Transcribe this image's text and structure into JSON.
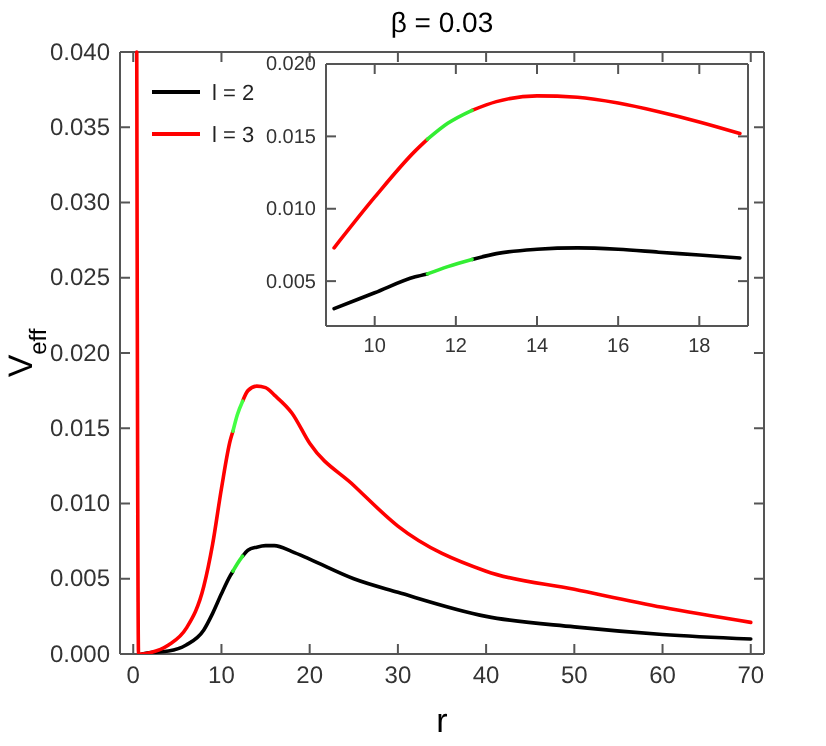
{
  "chart_data": [
    {
      "type": "line",
      "title": "β = 0.03",
      "xlabel": "r",
      "ylabel": "V$_{eff}$",
      "xlim": [
        -1.5,
        71.5
      ],
      "ylim": [
        0,
        0.04
      ],
      "xticks": [
        0,
        10,
        20,
        30,
        40,
        50,
        60,
        70
      ],
      "yticks": [
        {
          "value": 0,
          "label": "0.000"
        },
        {
          "value": 0.005,
          "label": "0.005"
        },
        {
          "value": 0.01,
          "label": "0.010"
        },
        {
          "value": 0.015,
          "label": "0.015"
        },
        {
          "value": 0.02,
          "label": "0.020"
        },
        {
          "value": 0.025,
          "label": "0.025"
        },
        {
          "value": 0.03,
          "label": "0.030"
        },
        {
          "value": 0.035,
          "label": "0.035"
        },
        {
          "value": 0.04,
          "label": "0.040"
        }
      ],
      "legend": "top left",
      "grid": false,
      "line_style": "solid",
      "marker": "none",
      "series": [
        {
          "name": "l = 2",
          "color": "#000000",
          "x": [
            1,
            2,
            4,
            6,
            8,
            9,
            10,
            11,
            11.3,
            11.8,
            12.4,
            13,
            14,
            15,
            16,
            18,
            20,
            25,
            30,
            40,
            50,
            60,
            70
          ],
          "values": [
            0,
            0.0001,
            0.0002,
            0.0006,
            0.0016,
            0.0027,
            0.004,
            0.0052,
            0.0055,
            null,
            0.0065,
            0.0069,
            0.0071,
            0.0072,
            0.0072,
            0.0068,
            0.0063,
            0.005,
            0.0041,
            0.0025,
            0.0018,
            0.0013,
            0.001
          ]
        },
        {
          "name": "l = 3",
          "color": "#ff0000",
          "x": [
            0.4,
            0.6,
            1,
            2,
            4,
            6,
            8,
            9,
            10,
            11,
            11.3,
            11.8,
            12.4,
            13,
            14,
            15,
            16,
            18,
            20,
            25,
            30,
            40,
            50,
            60,
            70
          ],
          "values": [
            0.04,
            0,
            0,
            0.0001,
            0.0006,
            0.0017,
            0.0045,
            0.0073,
            0.011,
            0.0142,
            0.0148,
            null,
            0.0168,
            0.0175,
            0.0178,
            0.0177,
            0.0172,
            0.016,
            0.014,
            0.0112,
            0.0085,
            0.0055,
            0.0043,
            0.0031,
            0.0021
          ]
        },
        {
          "color": "#33ee33",
          "x": [
            11.3,
            11.8,
            12.4
          ],
          "values": [
            0.0055,
            0.006,
            0.0065
          ]
        },
        {
          "color": "#44ff44",
          "x": [
            11.3,
            11.8,
            12.4
          ],
          "values": [
            0.0148,
            0.0159,
            0.0168
          ]
        }
      ]
    },
    {
      "type": "line",
      "xlim": [
        8.8,
        19.2
      ],
      "ylim": [
        0.0019,
        0.02
      ],
      "xticks": [
        10,
        12,
        14,
        16,
        18
      ],
      "yticks": [
        {
          "value": 0.005,
          "label": "0.005"
        },
        {
          "value": 0.01,
          "label": "0.010"
        },
        {
          "value": 0.015,
          "label": "0.015"
        },
        {
          "value": 0.02,
          "label": "0.020"
        }
      ],
      "grid": false,
      "line_style": "solid",
      "marker": "none",
      "series": [
        {
          "color": "#000000",
          "x": [
            9,
            10,
            11,
            11.3,
            11.8,
            12.4,
            13,
            14,
            15,
            16,
            17,
            18,
            19
          ],
          "values": [
            0.0031,
            0.0042,
            0.0053,
            0.0055,
            null,
            0.0065,
            0.0069,
            0.0072,
            0.0073,
            0.0072,
            0.007,
            0.0068,
            0.0066
          ]
        },
        {
          "color": "#ff0000",
          "x": [
            9,
            10,
            11,
            11.3,
            11.8,
            12.4,
            13,
            14,
            15,
            16,
            17,
            18,
            19
          ],
          "values": [
            0.0073,
            0.0108,
            0.014,
            0.0148,
            null,
            0.0168,
            0.0174,
            0.0178,
            0.0177,
            0.0173,
            0.0167,
            0.016,
            0.0152
          ]
        },
        {
          "color": "#33ee33",
          "x": [
            11.3,
            11.8,
            12.4
          ],
          "values": [
            0.0055,
            0.006,
            0.0065
          ]
        },
        {
          "color": "#33ee33",
          "x": [
            11.3,
            11.8,
            12.4
          ],
          "values": [
            0.0148,
            0.0159,
            0.0168
          ]
        }
      ]
    }
  ]
}
